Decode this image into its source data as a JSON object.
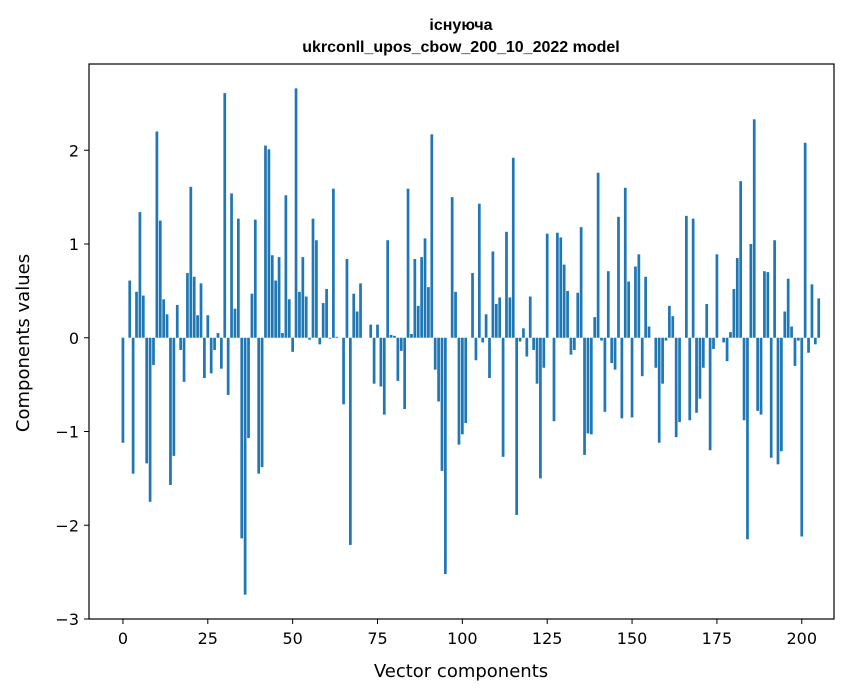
{
  "chart_data": {
    "type": "bar",
    "title_line1": "існуюча",
    "title_line2": "ukrconll_upos_cbow_200_10_2022 model",
    "xlabel": "Vector components",
    "ylabel": "Components values",
    "xlim": [
      -10,
      209.5
    ],
    "ylim": [
      -3.0,
      2.92
    ],
    "xticks": [
      0,
      25,
      50,
      75,
      100,
      125,
      150,
      175,
      200
    ],
    "xtick_labels": [
      "0",
      "25",
      "50",
      "75",
      "100",
      "125",
      "150",
      "175",
      "200"
    ],
    "yticks": [
      -3,
      -2,
      -1,
      0,
      1,
      2
    ],
    "ytick_labels": [
      "−3",
      "−2",
      "−1",
      "0",
      "1",
      "2"
    ],
    "bar_color": "#1f77b4",
    "grid": false,
    "values": [
      -1.12,
      0.0,
      0.61,
      -1.45,
      0.49,
      1.34,
      0.45,
      -1.34,
      -1.75,
      -0.29,
      2.2,
      1.25,
      0.41,
      0.25,
      -1.57,
      -1.26,
      0.35,
      -0.13,
      -0.47,
      0.69,
      1.61,
      0.65,
      0.24,
      0.58,
      -0.43,
      0.24,
      -0.38,
      -0.13,
      0.05,
      -0.33,
      2.61,
      -0.61,
      1.54,
      0.31,
      1.27,
      -2.14,
      -2.74,
      -1.07,
      0.47,
      1.26,
      -1.45,
      -1.38,
      2.05,
      2.01,
      0.88,
      0.61,
      0.86,
      0.05,
      1.52,
      0.41,
      -0.15,
      2.66,
      0.49,
      0.86,
      0.44,
      -0.02,
      1.27,
      1.04,
      -0.07,
      0.37,
      0.52,
      -0.01,
      1.59,
      0.01,
      0.0,
      -0.71,
      0.84,
      -2.21,
      0.47,
      0.28,
      0.58,
      0.0,
      0.0,
      0.14,
      -0.49,
      0.14,
      -0.52,
      -0.82,
      1.04,
      0.03,
      0.02,
      -0.46,
      -0.14,
      -0.76,
      1.59,
      0.04,
      0.84,
      0.34,
      0.86,
      1.06,
      0.54,
      2.17,
      -0.34,
      -0.68,
      -1.42,
      -2.52,
      0.0,
      1.5,
      0.49,
      -1.14,
      -1.03,
      -0.91,
      0.0,
      0.69,
      -0.24,
      1.43,
      -0.05,
      0.25,
      -0.43,
      0.92,
      0.36,
      0.43,
      -1.27,
      1.13,
      0.43,
      1.92,
      -1.89,
      -0.04,
      0.1,
      -0.2,
      0.44,
      -0.13,
      -0.49,
      -1.5,
      -0.32,
      1.11,
      0.0,
      -0.89,
      1.12,
      1.07,
      0.78,
      0.5,
      -0.18,
      -0.13,
      0.48,
      1.18,
      -1.25,
      -1.02,
      -1.03,
      0.22,
      1.76,
      -0.03,
      -0.79,
      0.71,
      -0.27,
      -0.34,
      1.29,
      -0.86,
      1.6,
      0.6,
      -0.85,
      0.76,
      0.89,
      -0.41,
      0.65,
      0.12,
      0.0,
      -0.32,
      -1.12,
      -0.49,
      -0.03,
      0.34,
      0.23,
      -1.06,
      -0.9,
      0.0,
      1.3,
      -0.88,
      1.27,
      -0.8,
      -0.65,
      -0.32,
      0.36,
      -1.2,
      -0.12,
      0.89,
      0.0,
      -0.05,
      -0.25,
      0.06,
      0.52,
      0.85,
      1.67,
      -0.88,
      -2.15,
      1.0,
      2.33,
      -0.78,
      -0.82,
      0.71,
      0.7,
      -1.28,
      1.04,
      -1.35,
      -1.21,
      0.28,
      0.63,
      0.12,
      -0.3,
      -0.03,
      -2.12,
      2.08,
      -0.16,
      0.57,
      -0.07,
      0.42
    ]
  }
}
